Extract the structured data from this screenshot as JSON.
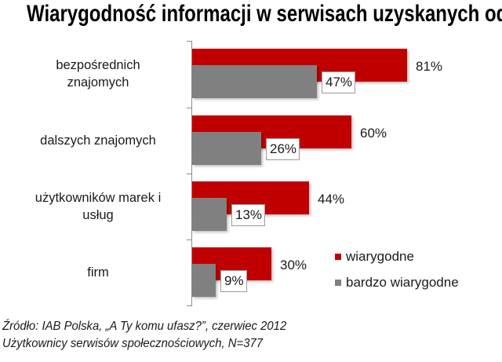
{
  "title": "Wiarygodność informacji w serwisach uzyskanych od:",
  "colors": {
    "wiarygodne": "#c00000",
    "bardzo_wiarygodne": "#808080"
  },
  "categories": [
    {
      "lines": [
        "bezpośrednich",
        "znajomych"
      ],
      "wiarygodne": 81,
      "bardzo_wiarygodne": 47,
      "label_w": "81%",
      "label_bw": "47%"
    },
    {
      "lines": [
        "dalszych znajomych"
      ],
      "wiarygodne": 60,
      "bardzo_wiarygodne": 26,
      "label_w": "60%",
      "label_bw": "26%"
    },
    {
      "lines": [
        "użytkowników marek i",
        "usług"
      ],
      "wiarygodne": 44,
      "bardzo_wiarygodne": 13,
      "label_w": "44%",
      "label_bw": "13%"
    },
    {
      "lines": [
        "firm"
      ],
      "wiarygodne": 30,
      "bardzo_wiarygodne": 9,
      "label_w": "30%",
      "label_bw": "9%"
    }
  ],
  "legend": [
    {
      "label": "wiarygodne",
      "color": "#c00000"
    },
    {
      "label": "bardzo wiarygodne",
      "color": "#808080"
    }
  ],
  "source": {
    "line1": "Źródło: IAB Polska, „A Ty komu ufasz?”, czerwiec 2012",
    "line2": "Użytkownicy serwisów społecznościowych, N=377"
  },
  "chart_data": {
    "type": "bar",
    "orientation": "horizontal",
    "title": "Wiarygodność informacji w serwisach uzyskanych od:",
    "categories": [
      "bezpośrednich znajomych",
      "dalszych znajomych",
      "użytkowników marek i usług",
      "firm"
    ],
    "series": [
      {
        "name": "wiarygodne",
        "color": "#c00000",
        "values": [
          81,
          60,
          44,
          30
        ]
      },
      {
        "name": "bardzo wiarygodne",
        "color": "#808080",
        "values": [
          47,
          26,
          13,
          9
        ]
      }
    ],
    "value_format": "percent",
    "xlabel": "",
    "ylabel": "",
    "xlim": [
      0,
      100
    ],
    "grid": false,
    "legend_position": "right-bottom",
    "annotations": [
      "Źródło: IAB Polska, „A Ty komu ufasz?”, czerwiec 2012",
      "Użytkownicy serwisów społecznościowych, N=377"
    ]
  }
}
